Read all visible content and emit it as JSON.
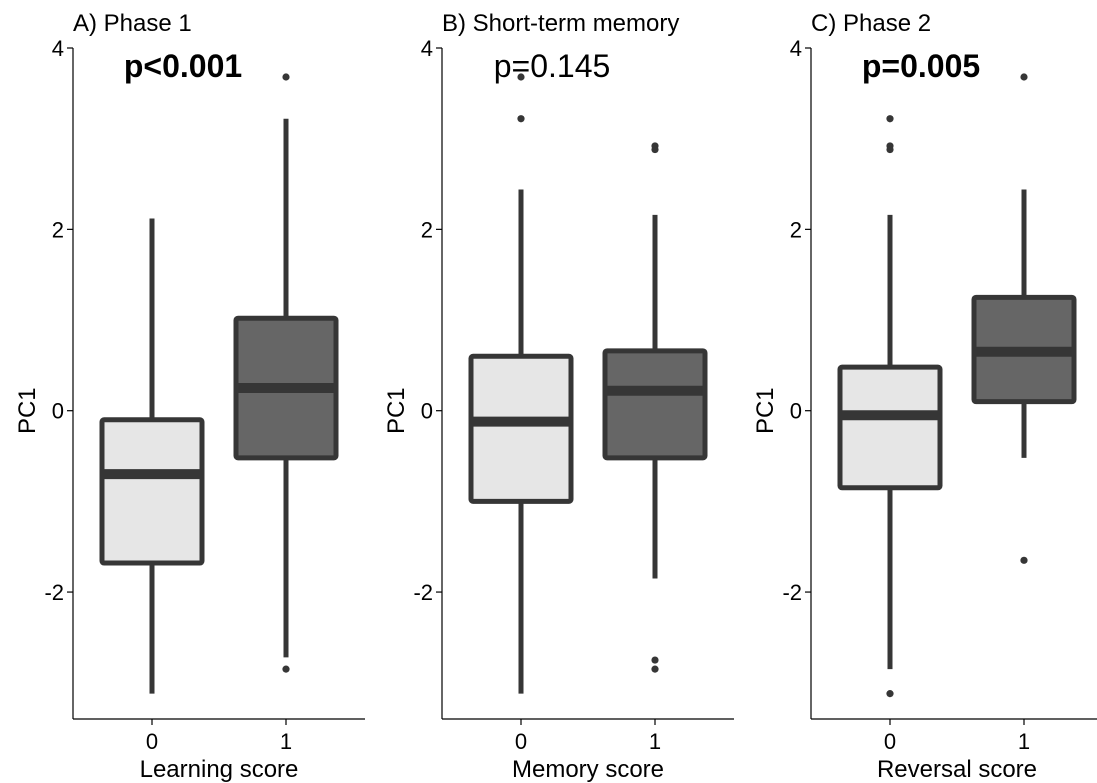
{
  "chart_data": [
    {
      "type": "box",
      "title": "A) Phase 1",
      "annotation": "p<0.001",
      "annotation_bold": true,
      "xlabel": "Learning score",
      "ylabel": "PC1",
      "ylim": [
        -3.4,
        4
      ],
      "yticks": [
        {
          "value": 4,
          "label": "4"
        },
        {
          "value": 2,
          "label": "2"
        },
        {
          "value": 0,
          "label": "0"
        },
        {
          "value": -2,
          "label": "-2"
        }
      ],
      "categories": [
        "0",
        "1"
      ],
      "boxes": [
        {
          "category": "0",
          "fill": "#e6e6e6",
          "min": -3.12,
          "q1": -1.68,
          "median": -0.7,
          "q3": -0.1,
          "max": 2.12,
          "outliers": []
        },
        {
          "category": "1",
          "fill": "#666666",
          "min": -2.72,
          "q1": -0.52,
          "median": 0.25,
          "q3": 1.02,
          "max": 3.22,
          "outliers": [
            3.68,
            -2.85
          ]
        }
      ]
    },
    {
      "type": "box",
      "title": "B) Short-term memory",
      "annotation": "p=0.145",
      "annotation_bold": false,
      "xlabel": "Memory score",
      "ylabel": "PC1",
      "ylim": [
        -3.4,
        4
      ],
      "yticks": [
        {
          "value": 4,
          "label": "4"
        },
        {
          "value": 2,
          "label": "2"
        },
        {
          "value": 0,
          "label": "0"
        },
        {
          "value": -2,
          "label": "-2"
        }
      ],
      "categories": [
        "0",
        "1"
      ],
      "boxes": [
        {
          "category": "0",
          "fill": "#e6e6e6",
          "min": -3.12,
          "q1": -1.0,
          "median": -0.12,
          "q3": 0.6,
          "max": 2.44,
          "outliers": [
            3.68,
            3.22
          ]
        },
        {
          "category": "1",
          "fill": "#666666",
          "min": -1.85,
          "q1": -0.52,
          "median": 0.22,
          "q3": 0.66,
          "max": 2.16,
          "outliers": [
            2.92,
            2.88,
            -2.75,
            -2.85
          ]
        }
      ]
    },
    {
      "type": "box",
      "title": "C) Phase 2",
      "annotation": "p=0.005",
      "annotation_bold": true,
      "xlabel": "Reversal score",
      "ylabel": "PC1",
      "ylim": [
        -3.4,
        4
      ],
      "yticks": [
        {
          "value": 4,
          "label": "4"
        },
        {
          "value": 2,
          "label": "2"
        },
        {
          "value": 0,
          "label": "0"
        },
        {
          "value": -2,
          "label": "-2"
        }
      ],
      "categories": [
        "0",
        "1"
      ],
      "boxes": [
        {
          "category": "0",
          "fill": "#e6e6e6",
          "min": -2.85,
          "q1": -0.85,
          "median": -0.05,
          "q3": 0.48,
          "max": 2.16,
          "outliers": [
            3.22,
            2.92,
            2.88,
            -3.12
          ]
        },
        {
          "category": "1",
          "fill": "#666666",
          "min": -0.52,
          "q1": 0.1,
          "median": 0.65,
          "q3": 1.25,
          "max": 2.44,
          "outliers": [
            3.68,
            -1.65
          ]
        }
      ]
    }
  ]
}
